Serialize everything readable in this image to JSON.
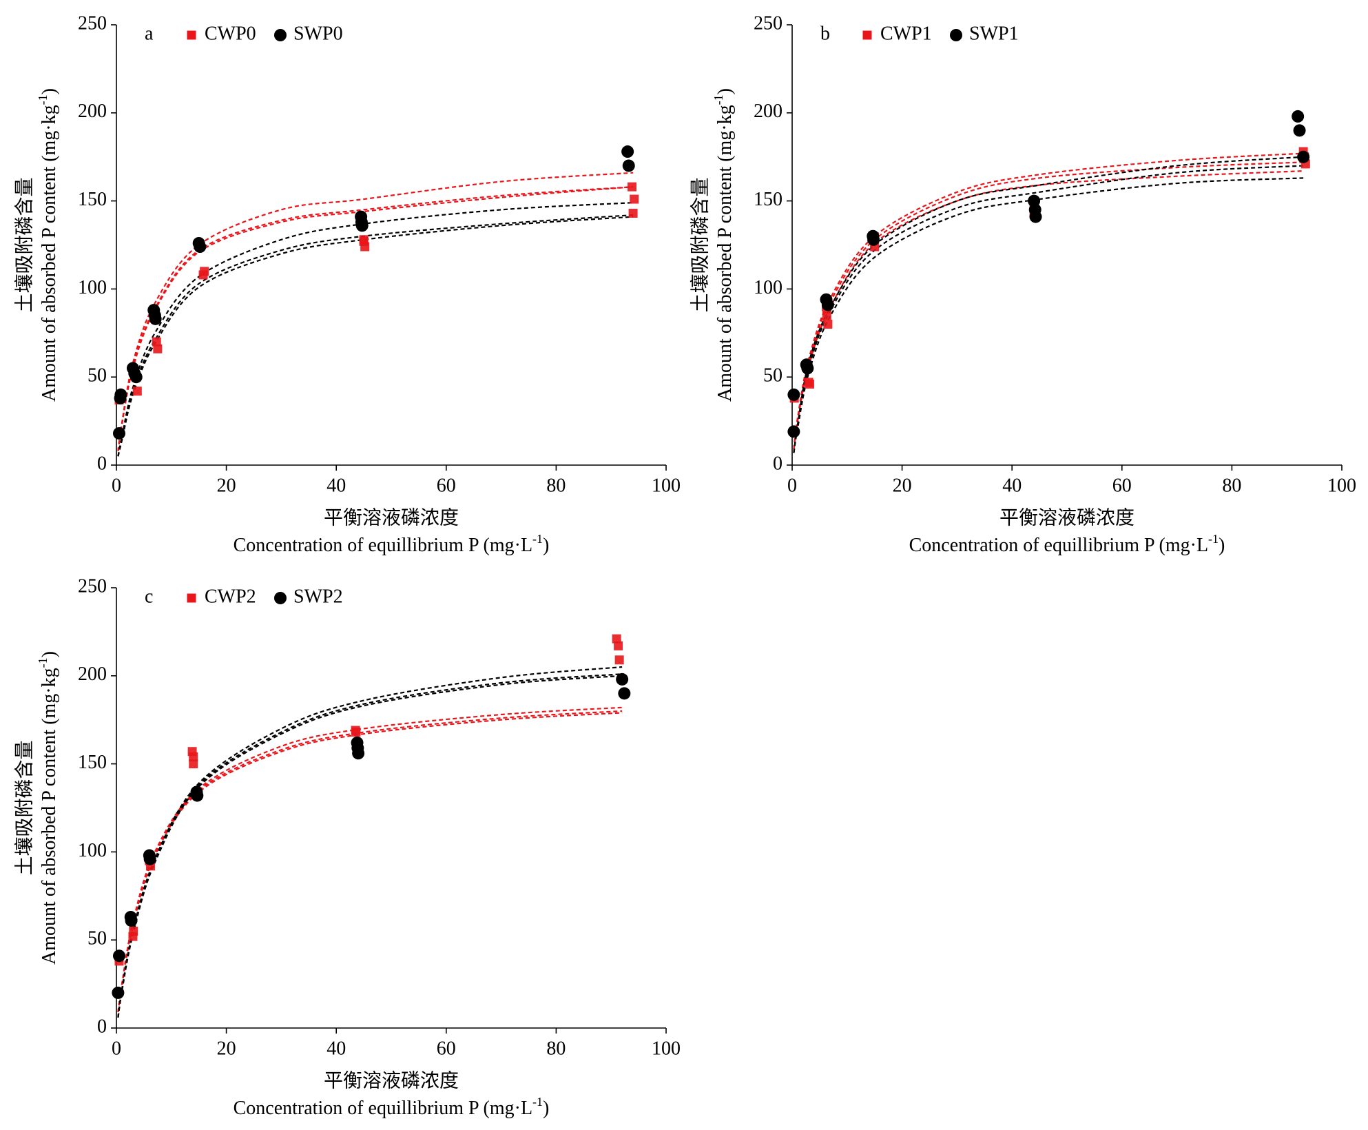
{
  "chart_data": [
    {
      "type": "scatter",
      "panel_label": "a",
      "xlim": [
        0,
        100
      ],
      "ylim": [
        0,
        250
      ],
      "xticks": [
        0,
        20,
        40,
        60,
        80,
        100
      ],
      "yticks": [
        0,
        50,
        100,
        150,
        200,
        250
      ],
      "y_label_cn": "土壤吸附磷含量",
      "y_label_en": {
        "text": "Amount of absorbed P content (mg·kg",
        "sup": "-1",
        "end": ")"
      },
      "x_label_cn": "平衡溶液磷浓度",
      "x_label_en": {
        "text": "Concentration of equillibrium P (mg·L",
        "sup": "-1",
        "end": ")"
      },
      "series": [
        {
          "name": "CWP0",
          "color": "#e8161b",
          "marker": "square",
          "x": [
            0.5,
            0.6,
            3.8,
            7.5,
            7.3,
            15.8,
            16,
            45.2,
            45,
            45,
            94,
            94.2,
            93.8
          ],
          "values": [
            37,
            39,
            42,
            66,
            70,
            108,
            110,
            124,
            127,
            128,
            143,
            151,
            158
          ]
        },
        {
          "name": "SWP0",
          "color": "#000000",
          "marker": "circle",
          "x": [
            0.5,
            0.7,
            0.8,
            3,
            3.3,
            3.6,
            6.8,
            7,
            7.1,
            15,
            15.2,
            44.5,
            44.6,
            44.7,
            93,
            93.2
          ],
          "values": [
            18,
            38,
            40,
            55,
            52,
            50,
            88,
            85,
            83,
            126,
            124,
            141,
            138,
            136,
            178,
            170
          ]
        }
      ],
      "fit_x": [
        0.3,
        1,
        3,
        7,
        15,
        30,
        45,
        70,
        94
      ],
      "fits": [
        {
          "color": "#e8161b",
          "values": [
            8,
            24,
            58,
            92,
            125,
            145,
            151,
            161,
            166
          ]
        },
        {
          "color": "#e8161b",
          "values": [
            8,
            23,
            56,
            89,
            122,
            139,
            145,
            153,
            158
          ]
        },
        {
          "color": "#e8161b",
          "values": [
            8,
            23,
            55,
            88,
            121,
            138,
            144,
            152,
            158
          ]
        },
        {
          "color": "#000000",
          "values": [
            5,
            16,
            44,
            75,
            107,
            128,
            137,
            145,
            149
          ]
        },
        {
          "color": "#000000",
          "values": [
            5,
            15,
            42,
            71,
            103,
            122,
            130,
            137,
            142
          ]
        },
        {
          "color": "#000000",
          "values": [
            5,
            14,
            40,
            69,
            101,
            120,
            128,
            136,
            141
          ]
        }
      ]
    },
    {
      "type": "scatter",
      "panel_label": "b",
      "xlim": [
        0,
        100
      ],
      "ylim": [
        0,
        250
      ],
      "xticks": [
        0,
        20,
        40,
        60,
        80,
        100
      ],
      "yticks": [
        0,
        50,
        100,
        150,
        200,
        250
      ],
      "y_label_cn": "土壤吸附磷含量",
      "y_label_en": {
        "text": "Amount of absorbed P content (mg·kg",
        "sup": "-1",
        "end": ")"
      },
      "x_label_cn": "平衡溶液磷浓度",
      "x_label_en": {
        "text": "Concentration of equillibrium P (mg·L",
        "sup": "-1",
        "end": ")"
      },
      "series": [
        {
          "name": "CWP1",
          "color": "#e8161b",
          "marker": "square",
          "x": [
            0.3,
            0.4,
            3,
            3.2,
            6.5,
            6.3,
            6.2,
            15,
            14.8,
            44,
            44,
            44,
            93,
            93.2,
            93.4
          ],
          "values": [
            40,
            38,
            47,
            46,
            80,
            85,
            90,
            124,
            128,
            150,
            146,
            143,
            178,
            175,
            171
          ]
        },
        {
          "name": "SWP1",
          "color": "#000000",
          "marker": "circle",
          "x": [
            0.3,
            0.3,
            2.6,
            2.8,
            6.2,
            6.5,
            14.7,
            14.8,
            44,
            44.2,
            44.3,
            92,
            92.3,
            93
          ],
          "values": [
            19,
            40,
            57,
            55,
            94,
            91,
            130,
            128,
            150,
            145,
            141,
            198,
            190,
            175
          ]
        }
      ],
      "fit_x": [
        0.3,
        1,
        3,
        7,
        15,
        30,
        45,
        70,
        93
      ],
      "fits": [
        {
          "color": "#e8161b",
          "values": [
            9,
            27,
            60,
            95,
            130,
            155,
            165,
            173,
            177
          ]
        },
        {
          "color": "#e8161b",
          "values": [
            9,
            26,
            58,
            93,
            128,
            153,
            163,
            169,
            172
          ]
        },
        {
          "color": "#e8161b",
          "values": [
            9,
            25,
            56,
            90,
            126,
            150,
            159,
            164,
            167
          ]
        },
        {
          "color": "#000000",
          "values": [
            7,
            23,
            58,
            90,
            125,
            150,
            159,
            170,
            175
          ]
        },
        {
          "color": "#000000",
          "values": [
            7,
            22,
            55,
            88,
            122,
            146,
            155,
            166,
            170
          ]
        },
        {
          "color": "#000000",
          "values": [
            7,
            21,
            52,
            85,
            118,
            142,
            151,
            160,
            163
          ]
        }
      ]
    },
    {
      "type": "scatter",
      "panel_label": "c",
      "xlim": [
        0,
        100
      ],
      "ylim": [
        0,
        250
      ],
      "xticks": [
        0,
        20,
        40,
        60,
        80,
        100
      ],
      "yticks": [
        0,
        50,
        100,
        150,
        200,
        250
      ],
      "y_label_cn": "土壤吸附磷含量",
      "y_label_en": {
        "text": "Amount of absorbed P content (mg·kg",
        "sup": "-1",
        "end": ")"
      },
      "x_label_cn": "平衡溶液磷浓度",
      "x_label_en": {
        "text": "Concentration of equillibrium P (mg·L",
        "sup": "-1",
        "end": ")"
      },
      "series": [
        {
          "name": "CWP2",
          "color": "#e8161b",
          "marker": "square",
          "x": [
            0.5,
            0.5,
            3,
            3.1,
            6.2,
            6,
            13.8,
            14,
            14,
            43.5,
            43.6,
            91,
            91.3,
            91.5
          ],
          "values": [
            38,
            40,
            52,
            55,
            92,
            95,
            157,
            154,
            150,
            169,
            168,
            221,
            217,
            209
          ]
        },
        {
          "name": "SWP2",
          "color": "#000000",
          "marker": "circle",
          "x": [
            0.3,
            0.5,
            2.6,
            2.7,
            6,
            6.1,
            14.6,
            14.7,
            43.8,
            43.9,
            44,
            92,
            92.4
          ],
          "values": [
            20,
            41,
            63,
            61,
            98,
            96,
            134,
            132,
            162,
            159,
            156,
            198,
            190
          ]
        }
      ],
      "fit_x": [
        0.3,
        1,
        3,
        7,
        15,
        30,
        45,
        70,
        92
      ],
      "fits": [
        {
          "color": "#e8161b",
          "values": [
            9,
            25,
            60,
            100,
            136,
            160,
            170,
            178,
            182
          ]
        },
        {
          "color": "#e8161b",
          "values": [
            9,
            25,
            59,
            99,
            135,
            158,
            168,
            176,
            180
          ]
        },
        {
          "color": "#e8161b",
          "values": [
            9,
            24,
            58,
            98,
            134,
            157,
            167,
            175,
            179
          ]
        },
        {
          "color": "#000000",
          "values": [
            6,
            22,
            55,
            96,
            139,
            170,
            186,
            199,
            205
          ]
        },
        {
          "color": "#000000",
          "values": [
            6,
            21,
            54,
            95,
            138,
            168,
            184,
            196,
            201
          ]
        },
        {
          "color": "#000000",
          "values": [
            6,
            21,
            53,
            94,
            137,
            167,
            183,
            195,
            200
          ]
        }
      ]
    }
  ]
}
